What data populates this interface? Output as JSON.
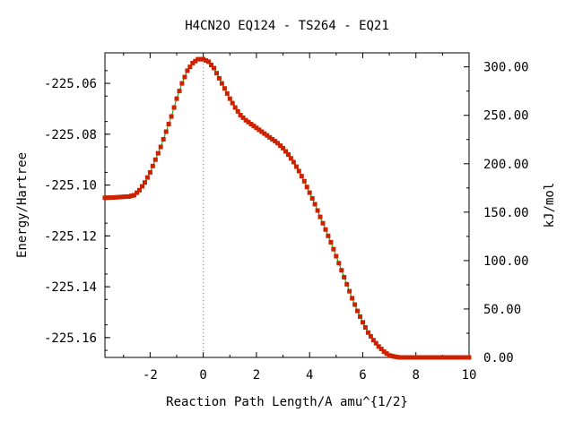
{
  "chart_data": {
    "type": "line",
    "title": "H4CN2O   EQ124 - TS264 - EQ21",
    "xlabel": "Reaction Path Length/A amu^{1/2}",
    "ylabel": "Energy/Hartree",
    "y2label": "kJ/mol",
    "xlim": [
      -3.7,
      10
    ],
    "ylim": [
      -225.1678,
      -225.048
    ],
    "y2lim": [
      0,
      314.5
    ],
    "xticks": [
      "-2",
      "0",
      "2",
      "4",
      "6",
      "8",
      "10"
    ],
    "xtick_values": [
      -2,
      0,
      2,
      4,
      6,
      8,
      10
    ],
    "yticks": [
      "-225.06",
      "-225.08",
      "-225.10",
      "-225.12",
      "-225.14",
      "-225.16"
    ],
    "ytick_values": [
      -225.06,
      -225.08,
      -225.1,
      -225.12,
      -225.14,
      -225.16
    ],
    "y2ticks": [
      "0.00",
      "50.00",
      "100.00",
      "150.00",
      "200.00",
      "250.00",
      "300.00"
    ],
    "y2tick_values": [
      0,
      50,
      100,
      150,
      200,
      250,
      300
    ],
    "ts_marker_x": 0,
    "line_color": "#00a000",
    "marker_color": "#cc2200",
    "grid": false,
    "series": [
      {
        "x": [
          -3.7,
          -3.4,
          -3.1,
          -2.8,
          -2.6,
          -2.4,
          -2.2,
          -2.0,
          -1.8,
          -1.6,
          -1.4,
          -1.2,
          -1.0,
          -0.8,
          -0.6,
          -0.4,
          -0.2,
          0.0,
          0.2,
          0.4,
          0.6,
          0.8,
          1.0,
          1.2,
          1.4,
          1.6,
          1.8,
          2.0,
          2.2,
          2.4,
          2.6,
          2.8,
          3.0,
          3.2,
          3.4,
          3.6,
          3.8,
          4.0,
          4.2,
          4.4,
          4.6,
          4.8,
          5.0,
          5.2,
          5.4,
          5.6,
          5.8,
          6.0,
          6.2,
          6.4,
          6.6,
          6.8,
          7.0,
          7.2,
          7.4,
          7.6,
          7.8,
          8.0,
          8.5,
          9.0,
          9.5,
          10.0
        ],
        "values": [
          -225.105,
          -225.1049,
          -225.1047,
          -225.1045,
          -225.104,
          -225.102,
          -225.099,
          -225.095,
          -225.09,
          -225.085,
          -225.079,
          -225.073,
          -225.066,
          -225.06,
          -225.055,
          -225.052,
          -225.0505,
          -225.0505,
          -225.0515,
          -225.054,
          -225.058,
          -225.062,
          -225.066,
          -225.0695,
          -225.0725,
          -225.0745,
          -225.076,
          -225.0775,
          -225.079,
          -225.0805,
          -225.082,
          -225.0835,
          -225.0855,
          -225.088,
          -225.091,
          -225.0945,
          -225.0985,
          -225.103,
          -225.1075,
          -225.1125,
          -225.1175,
          -225.1225,
          -225.128,
          -225.1335,
          -225.139,
          -225.1445,
          -225.1495,
          -225.154,
          -225.158,
          -225.161,
          -225.1635,
          -225.1655,
          -225.167,
          -225.1675,
          -225.1678,
          -225.1678,
          -225.1678,
          -225.1678,
          -225.1678,
          -225.1678,
          -225.1678,
          -225.1678
        ]
      }
    ]
  }
}
